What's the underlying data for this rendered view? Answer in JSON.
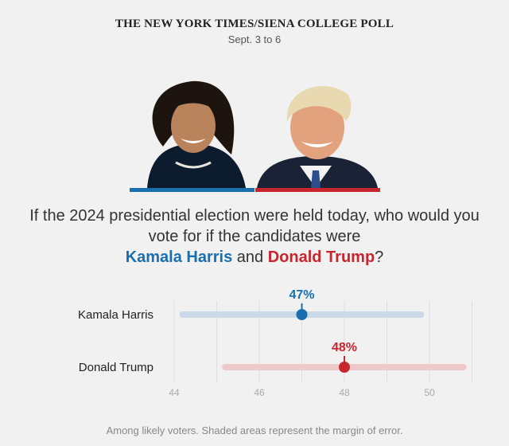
{
  "header": {
    "title": "THE NEW YORK TIMES/SIENA COLLEGE POLL",
    "dates": "Sept. 3 to 6"
  },
  "question": {
    "prefix_line": "If the 2024 presidential election were held today, who would you vote for if the candidates were",
    "candidate_a": "Kamala Harris",
    "conjunction": "and",
    "candidate_b": "Donald Trump",
    "suffix": "?"
  },
  "footnote": "Among likely voters. Shaded areas represent the margin of error.",
  "colors": {
    "harris": "#1a6faf",
    "trump": "#c8262f",
    "harris_band": "#c9d9e7",
    "trump_band": "#efc9ca"
  },
  "icons": [
    "harris-portrait-icon",
    "trump-portrait-icon"
  ],
  "chart_data": {
    "type": "scatter",
    "title": "",
    "xlabel": "",
    "ylabel": "",
    "xlim": [
      44,
      51
    ],
    "xticks": [
      44,
      46,
      48,
      50
    ],
    "grid": true,
    "series": [
      {
        "name": "Kamala Harris",
        "value": 47,
        "label": "47%",
        "moe_low": 44.2,
        "moe_high": 49.8,
        "color": "#1a6faf"
      },
      {
        "name": "Donald Trump",
        "value": 48,
        "label": "48%",
        "moe_low": 45.2,
        "moe_high": 50.8,
        "color": "#c8262f"
      }
    ]
  }
}
